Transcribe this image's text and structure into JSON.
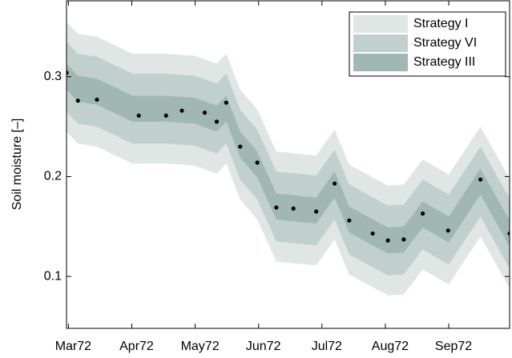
{
  "chart_data": {
    "type": "band",
    "ylabel": "Soil moisture [–]",
    "xlim": [
      -0.03,
      6.96
    ],
    "ylim": [
      0.048,
      0.376
    ],
    "xticks": [
      {
        "value": 0,
        "label": "Mar72"
      },
      {
        "value": 1,
        "label": "Apr72"
      },
      {
        "value": 2,
        "label": "May72"
      },
      {
        "value": 3,
        "label": "Jun72"
      },
      {
        "value": 4,
        "label": "Jul72"
      },
      {
        "value": 5,
        "label": "Aug72"
      },
      {
        "value": 6,
        "label": "Sep72"
      }
    ],
    "yticks": [
      0.1,
      0.2,
      0.3
    ],
    "legend": "upper right",
    "band_x": [
      -0.03,
      0.15,
      0.45,
      1.01,
      1.54,
      1.99,
      2.34,
      2.49,
      2.71,
      2.98,
      3.28,
      3.91,
      4.2,
      4.43,
      5.04,
      5.29,
      5.59,
      6.0,
      6.5,
      6.96
    ],
    "series": [
      {
        "name": "Strategy I",
        "color": "#dfe6e4",
        "lower": [
          0.245,
          0.233,
          0.23,
          0.213,
          0.213,
          0.211,
          0.203,
          0.213,
          0.177,
          0.157,
          0.115,
          0.111,
          0.137,
          0.102,
          0.081,
          0.082,
          0.107,
          0.092,
          0.14,
          0.088
        ],
        "upper": [
          0.355,
          0.343,
          0.34,
          0.323,
          0.323,
          0.321,
          0.313,
          0.323,
          0.287,
          0.267,
          0.225,
          0.221,
          0.247,
          0.212,
          0.191,
          0.192,
          0.217,
          0.202,
          0.25,
          0.198
        ]
      },
      {
        "name": "Strategy VI",
        "color": "#c1d0cd",
        "lower": [
          0.265,
          0.253,
          0.25,
          0.233,
          0.233,
          0.231,
          0.223,
          0.233,
          0.197,
          0.177,
          0.135,
          0.131,
          0.157,
          0.122,
          0.101,
          0.102,
          0.127,
          0.112,
          0.16,
          0.108
        ],
        "upper": [
          0.335,
          0.323,
          0.32,
          0.303,
          0.303,
          0.301,
          0.293,
          0.303,
          0.267,
          0.247,
          0.205,
          0.201,
          0.227,
          0.192,
          0.171,
          0.172,
          0.197,
          0.182,
          0.23,
          0.178
        ]
      },
      {
        "name": "Strategy III",
        "color": "#a0b7b3",
        "lower": [
          0.287,
          0.275,
          0.272,
          0.255,
          0.255,
          0.253,
          0.245,
          0.255,
          0.219,
          0.199,
          0.157,
          0.153,
          0.179,
          0.144,
          0.123,
          0.124,
          0.149,
          0.134,
          0.182,
          0.13
        ],
        "upper": [
          0.313,
          0.301,
          0.298,
          0.281,
          0.281,
          0.279,
          0.271,
          0.281,
          0.245,
          0.225,
          0.183,
          0.179,
          0.205,
          0.17,
          0.149,
          0.15,
          0.175,
          0.16,
          0.208,
          0.156
        ]
      }
    ],
    "points": {
      "color": "#000000",
      "x": [
        -0.03,
        0.15,
        0.45,
        1.11,
        1.54,
        1.79,
        2.15,
        2.34,
        2.49,
        2.71,
        2.98,
        3.28,
        3.55,
        3.91,
        4.2,
        4.43,
        4.8,
        5.04,
        5.29,
        5.59,
        5.99,
        6.5,
        6.96
      ],
      "y": [
        0.304,
        0.276,
        0.277,
        0.261,
        0.261,
        0.266,
        0.264,
        0.255,
        0.274,
        0.23,
        0.214,
        0.169,
        0.168,
        0.165,
        0.193,
        0.156,
        0.143,
        0.136,
        0.137,
        0.163,
        0.146,
        0.197,
        0.143
      ]
    }
  }
}
